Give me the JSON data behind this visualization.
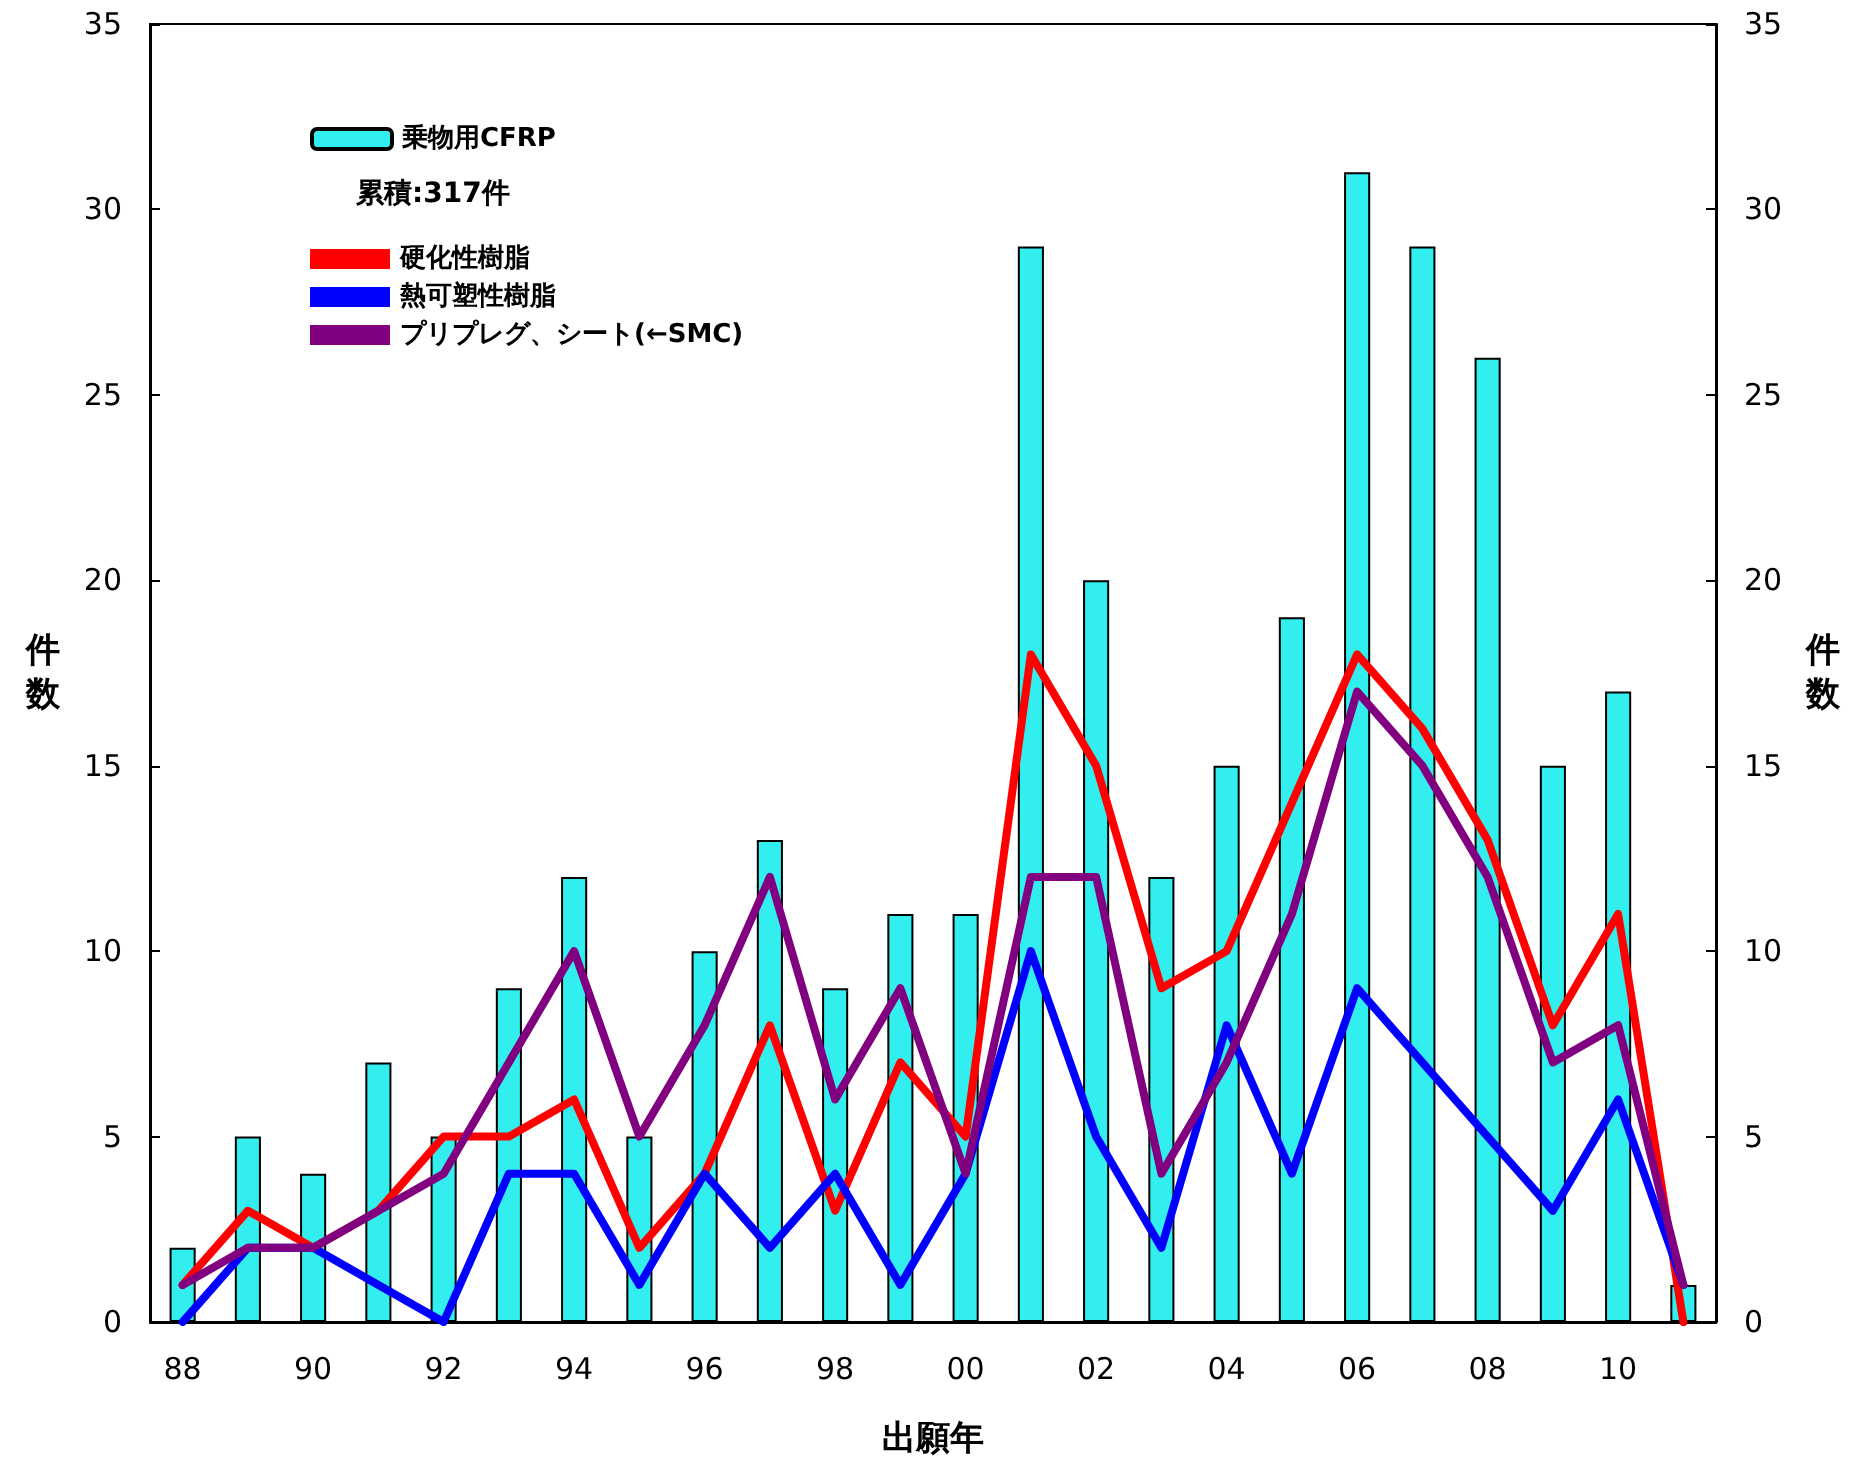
{
  "chart_data": {
    "type": "bar",
    "categories": [
      "88",
      null,
      "90",
      null,
      "92",
      null,
      "94",
      null,
      "96",
      null,
      "98",
      null,
      "00",
      null,
      "02",
      null,
      "04",
      null,
      "06",
      null,
      "08",
      null,
      "10",
      null
    ],
    "series": [
      {
        "name": "乗物用CFRP",
        "color": "#33eeee",
        "values": [
          2,
          5,
          4,
          7,
          5,
          9,
          12,
          5,
          10,
          13,
          9,
          11,
          11,
          29,
          20,
          12,
          15,
          19,
          31,
          29,
          26,
          15,
          17,
          1
        ]
      },
      {
        "name": "硬化性樹脂",
        "type": "line",
        "color": "#ff0000",
        "values": [
          1,
          3,
          2,
          3,
          5,
          5,
          6,
          2,
          4,
          8,
          3,
          7,
          5,
          18,
          15,
          9,
          10,
          14,
          18,
          16,
          13,
          8,
          11,
          0
        ]
      },
      {
        "name": "熱可塑性樹脂",
        "type": "line",
        "color": "#0000ff",
        "values": [
          0,
          2,
          2,
          1,
          0,
          4,
          4,
          1,
          4,
          2,
          4,
          1,
          4,
          10,
          5,
          2,
          8,
          4,
          9,
          7,
          5,
          3,
          6,
          1
        ]
      },
      {
        "name": "プリプレグ、シート(←SMC)",
        "type": "line",
        "color": "#800080",
        "values": [
          1,
          2,
          2,
          3,
          4,
          7,
          10,
          5,
          8,
          12,
          6,
          9,
          4,
          12,
          12,
          4,
          7,
          11,
          17,
          15,
          12,
          7,
          8,
          1
        ]
      }
    ],
    "xlabel": "出願年",
    "ylabel": "件数",
    "y2label": "件数",
    "ylim": [
      0,
      35
    ],
    "yticks": [
      0,
      5,
      10,
      15,
      20,
      25,
      30,
      35
    ],
    "y2lim": [
      0,
      35
    ],
    "y2ticks": [
      0,
      5,
      10,
      15,
      20,
      25,
      30,
      35
    ],
    "annotations": [
      "累積:317件"
    ],
    "legend": "top left",
    "grid": false,
    "marker": "none",
    "line_style": "solid"
  }
}
